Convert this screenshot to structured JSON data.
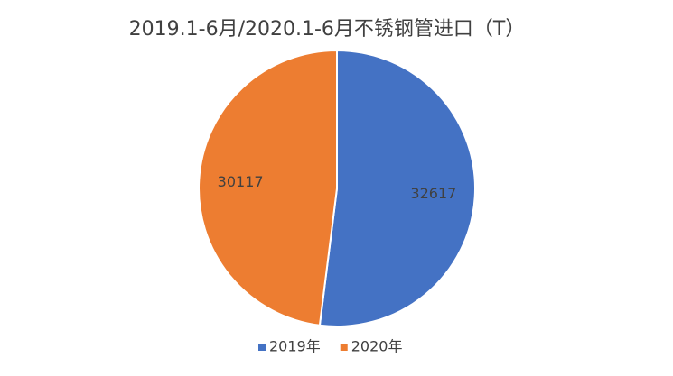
{
  "chart_data": {
    "type": "pie",
    "title": "2019.1-6月/2020.1-6月不锈钢管进口（T）",
    "categories": [
      "2019年",
      "2020年"
    ],
    "values": [
      32617,
      30117
    ],
    "colors": [
      "#4472c4",
      "#ed7d31"
    ],
    "legend": "bottom"
  }
}
